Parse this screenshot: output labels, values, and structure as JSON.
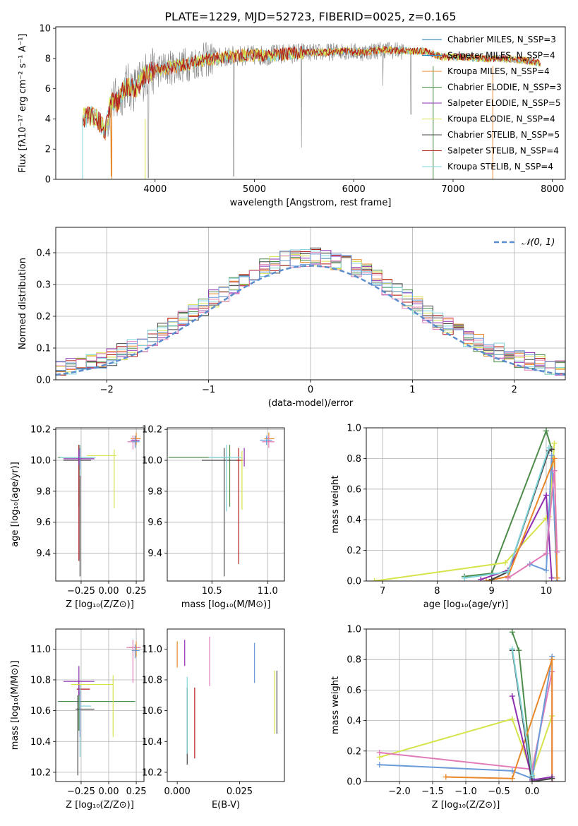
{
  "chart_data": [
    {
      "id": "spectrum",
      "type": "line",
      "title": "PLATE=1229, MJD=52723, FIBERID=0025, z=0.165",
      "xlabel": "wavelength [Angstrom, rest frame]",
      "ylabel": "Flux [fλ10⁻¹⁷ erg cm⁻² s⁻¹ A⁻¹]",
      "xlim": [
        3000,
        8130
      ],
      "ylim": [
        0,
        10.1
      ],
      "xticks": [
        4000,
        5000,
        6000,
        7000,
        8000
      ],
      "yticks": [
        0,
        2,
        4,
        6,
        8,
        10
      ],
      "grid": false,
      "legend_position": "upper-right",
      "continuum": {
        "x": [
          3270,
          3300,
          3350,
          3420,
          3500,
          3560,
          3620,
          3700,
          3800,
          3900,
          4000,
          4150,
          4300,
          4500,
          4700,
          4900,
          5100,
          5300,
          5500,
          5700,
          5900,
          6100,
          6300,
          6500,
          6700,
          6900,
          7100,
          7300,
          7500,
          7700,
          7880
        ],
        "y": [
          4.1,
          4.1,
          4.2,
          4.0,
          3.2,
          5.3,
          5.1,
          6.2,
          6.0,
          6.9,
          7.2,
          7.4,
          7.6,
          7.9,
          8.1,
          8.2,
          8.2,
          8.3,
          8.4,
          8.4,
          8.5,
          8.4,
          8.6,
          8.5,
          8.5,
          8.1,
          8.1,
          8.0,
          8.0,
          7.9,
          7.7
        ]
      },
      "series": [
        {
          "name": "Chabrier MILES, N_SSP=3",
          "color": "#1f77b4"
        },
        {
          "name": "Salpeter MILES, N_SSP=4",
          "color": "#2c8cbf"
        },
        {
          "name": "Kroupa MILES, N_SSP=4",
          "color": "#e8882a"
        },
        {
          "name": "Chabrier ELODIE, N_SSP=3",
          "color": "#4c8c4a"
        },
        {
          "name": "Salpeter ELODIE, N_SSP=5",
          "color": "#8e2fb0"
        },
        {
          "name": "Kroupa ELODIE, N_SSP=4",
          "color": "#d6e34a"
        },
        {
          "name": "Chabrier STELIB, N_SSP=5",
          "color": "#444444"
        },
        {
          "name": "Salpeter STELIB, N_SSP=4",
          "color": "#b01c1c"
        },
        {
          "name": "Kroupa STELIB, N_SSP=4",
          "color": "#7fd3d8"
        }
      ]
    },
    {
      "id": "residuals",
      "type": "bar",
      "xlabel": "(data-model)/error",
      "ylabel": "Normed distribution",
      "xlim": [
        -2.5,
        2.5
      ],
      "ylim": [
        0,
        0.48
      ],
      "xticks": [
        -2,
        -1,
        0,
        1,
        2
      ],
      "yticks": [
        0.0,
        0.1,
        0.2,
        0.3,
        0.4
      ],
      "grid": true,
      "legend_position": "upper-right",
      "legend": "𝒩(0, 1)",
      "reference_curve": {
        "name": "N(0,1)",
        "mean": 0,
        "sigma": 1,
        "color": "#5b8ccc"
      },
      "bin_width": 0.1,
      "series_colors": [
        "#e8882a",
        "#4c8c4a",
        "#8e2fb0",
        "#d6e34a",
        "#444444",
        "#b01c1c",
        "#7fd3d8",
        "#e17ab8",
        "#6a9bd8"
      ]
    },
    {
      "id": "age-vs-Z",
      "type": "scatter",
      "xlabel": "Z [log₁₀(Z/Z⊙)]",
      "ylabel": "age  [log₁₀(age/yr)]",
      "xlim": [
        -0.48,
        0.32
      ],
      "ylim": [
        9.22,
        10.21
      ],
      "xticks": [
        -0.25,
        0.0,
        0.25
      ],
      "xticklabels": [
        "−0.25",
        "0.00",
        "0.25"
      ],
      "yticks": [
        9.4,
        9.6,
        9.8,
        10.0,
        10.2
      ],
      "yticklabels": [
        "9.4",
        "9.6",
        "9.8",
        "10.0",
        "10.2"
      ],
      "grid": true,
      "points": [
        {
          "x": -0.27,
          "xerr": [
            0.19,
            0.13
          ],
          "y": 10.02,
          "yerr": [
            0.32,
            0.08
          ],
          "color": "#4c8c4a"
        },
        {
          "x": -0.26,
          "xerr": [
            0.15,
            0.1
          ],
          "y": 10.0,
          "yerr": [
            0.75,
            0.08
          ],
          "color": "#444444"
        },
        {
          "x": -0.27,
          "xerr": [
            0.0,
            0.0
          ],
          "y": 10.0,
          "yerr": [
            0.65,
            0.1
          ],
          "color": "#b01c1c"
        },
        {
          "x": -0.26,
          "xerr": [
            0.18,
            0.14
          ],
          "y": 10.02,
          "yerr": [
            0.12,
            0.08
          ],
          "color": "#7fd3d8"
        },
        {
          "x": -0.26,
          "xerr": [
            0.0,
            0.0
          ],
          "y": 10.02,
          "yerr": [
            0.08,
            0.06
          ],
          "color": "#6a9bd8"
        },
        {
          "x": -0.27,
          "xerr": [
            0.14,
            0.14
          ],
          "y": 10.01,
          "yerr": [
            0.04,
            0.06
          ],
          "color": "#8e2fb0"
        },
        {
          "x": 0.05,
          "xerr": [
            0.25,
            0.02
          ],
          "y": 10.03,
          "yerr": [
            0.34,
            0.04
          ],
          "color": "#d6e34a"
        },
        {
          "x": 0.25,
          "xerr": [
            0.05,
            0.04
          ],
          "y": 10.14,
          "yerr": [
            0.04,
            0.04
          ],
          "color": "#e8882a"
        },
        {
          "x": 0.22,
          "xerr": [
            0.05,
            0.04
          ],
          "y": 10.12,
          "yerr": [
            0.05,
            0.04
          ],
          "color": "#e17ab8"
        },
        {
          "x": 0.24,
          "xerr": [
            0.04,
            0.04
          ],
          "y": 10.13,
          "yerr": [
            0.04,
            0.03
          ],
          "color": "#8e2fb0"
        },
        {
          "x": 0.24,
          "xerr": [
            0.03,
            0.04
          ],
          "y": 10.12,
          "yerr": [
            0.04,
            0.04
          ],
          "color": "#6a9bd8"
        }
      ]
    },
    {
      "id": "age-vs-mass",
      "type": "scatter",
      "xlabel": "mass [log₁₀(M/M⊙)]",
      "ylabel": "",
      "xlim": [
        10.1,
        11.15
      ],
      "ylim": [
        9.22,
        10.21
      ],
      "xticks": [
        10.5,
        11.0
      ],
      "xticklabels": [
        "10.5",
        "11.0"
      ],
      "yticks": [
        9.4,
        9.6,
        9.8,
        10.0,
        10.2
      ],
      "yticklabels": [
        "9.4",
        "9.6",
        "9.8",
        "10.0",
        "10.2"
      ],
      "grid": true,
      "points": [
        {
          "x": 10.66,
          "xerr": [
            0.55,
            0.0
          ],
          "y": 10.02,
          "yerr": [
            0.32,
            0.08
          ],
          "color": "#4c8c4a"
        },
        {
          "x": 10.61,
          "xerr": [
            0.2,
            0.14
          ],
          "y": 10.0,
          "yerr": [
            0.75,
            0.08
          ],
          "color": "#444444"
        },
        {
          "x": 10.74,
          "xerr": [
            0.02,
            0.04
          ],
          "y": 10.0,
          "yerr": [
            0.67,
            0.08
          ],
          "color": "#b01c1c"
        },
        {
          "x": 10.63,
          "xerr": [
            0.16,
            0.14
          ],
          "y": 10.02,
          "yerr": [
            0.35,
            0.08
          ],
          "color": "#7fd3d8"
        },
        {
          "x": 10.77,
          "xerr": [
            0.0,
            0.0
          ],
          "y": 10.02,
          "yerr": [
            0.34,
            0.04
          ],
          "color": "#d6e34a"
        },
        {
          "x": 10.79,
          "xerr": [
            0.0,
            0.0
          ],
          "y": 10.02,
          "yerr": [
            0.06,
            0.06
          ],
          "color": "#8e2fb0"
        },
        {
          "x": 11.01,
          "xerr": [
            0.04,
            0.05
          ],
          "y": 10.14,
          "yerr": [
            0.03,
            0.04
          ],
          "color": "#e8882a"
        },
        {
          "x": 11.01,
          "xerr": [
            0.06,
            0.05
          ],
          "y": 10.12,
          "yerr": [
            0.04,
            0.04
          ],
          "color": "#e17ab8"
        },
        {
          "x": 10.99,
          "xerr": [
            0.06,
            0.05
          ],
          "y": 10.13,
          "yerr": [
            0.03,
            0.03
          ],
          "color": "#6a9bd8"
        }
      ]
    },
    {
      "id": "weight-vs-age",
      "type": "line",
      "xlabel": "age  [log₁₀(age/yr)]",
      "ylabel": "mass weight",
      "xlim": [
        6.7,
        10.35
      ],
      "ylim": [
        0.0,
        1.0
      ],
      "xticks": [
        7,
        8,
        9,
        10
      ],
      "xticklabels": [
        "7",
        "8",
        "9",
        "10"
      ],
      "yticks": [
        0.0,
        0.2,
        0.4,
        0.6,
        0.8,
        1.0
      ],
      "yticklabels": [
        "0.0",
        "0.2",
        "0.4",
        "0.6",
        "0.8",
        "1.0"
      ],
      "grid": true,
      "series": [
        {
          "color": "#4c8c4a",
          "x": [
            8.5,
            9.0,
            10.0,
            10.1
          ],
          "y": [
            0.03,
            0.05,
            0.98,
            0.86
          ]
        },
        {
          "color": "#d6e34a",
          "x": [
            6.85,
            9.25,
            10.0,
            10.05,
            10.15
          ],
          "y": [
            0.0,
            0.12,
            0.41,
            0.42,
            0.9
          ]
        },
        {
          "color": "#8e2fb0",
          "x": [
            8.8,
            9.3,
            10.0,
            10.1
          ],
          "y": [
            0.01,
            0.07,
            0.56,
            0.02
          ]
        },
        {
          "color": "#6a9bd8",
          "x": [
            9.7,
            10.0,
            10.1,
            10.2
          ],
          "y": [
            0.11,
            0.07,
            0.82,
            0.0
          ]
        },
        {
          "color": "#e8882a",
          "x": [
            8.9,
            9.3,
            10.15,
            10.2
          ],
          "y": [
            0.0,
            0.03,
            0.8,
            0.02
          ]
        },
        {
          "color": "#e17ab8",
          "x": [
            9.3,
            10.0,
            10.15,
            10.2
          ],
          "y": [
            0.02,
            0.18,
            0.72,
            0.19
          ]
        },
        {
          "color": "#444444",
          "x": [
            9.0,
            9.3,
            10.05,
            10.1
          ],
          "y": [
            0.01,
            0.06,
            0.85,
            0.86
          ]
        },
        {
          "color": "#7fd3d8",
          "x": [
            8.5,
            9.3,
            10.05
          ],
          "y": [
            0.02,
            0.06,
            0.87
          ]
        }
      ]
    },
    {
      "id": "mass-vs-Z",
      "type": "scatter",
      "xlabel": "Z [log₁₀(Z/Z⊙)]",
      "ylabel": "mass [log₁₀(M/M⊙)]",
      "xlim": [
        -0.48,
        0.32
      ],
      "ylim": [
        10.14,
        11.13
      ],
      "xticks": [
        -0.25,
        0.0,
        0.25
      ],
      "xticklabels": [
        "−0.25",
        "0.00",
        "0.25"
      ],
      "yticks": [
        10.2,
        10.4,
        10.6,
        10.8,
        11.0
      ],
      "yticklabels": [
        "10.2",
        "10.4",
        "10.6",
        "10.8",
        "11.0"
      ],
      "grid": true,
      "points": [
        {
          "x": -0.27,
          "xerr": [
            0.19,
            0.51
          ],
          "y": 10.66,
          "yerr": [
            0.19,
            0.06
          ],
          "color": "#4c8c4a"
        },
        {
          "x": -0.28,
          "xerr": [
            0.02,
            0.15
          ],
          "y": 10.61,
          "yerr": [
            0.43,
            0.09
          ],
          "color": "#444444"
        },
        {
          "x": -0.27,
          "xerr": [
            0.02,
            0.1
          ],
          "y": 10.74,
          "yerr": [
            0.04,
            0.05
          ],
          "color": "#b01c1c"
        },
        {
          "x": -0.26,
          "xerr": [
            0.0,
            0.1
          ],
          "y": 10.63,
          "yerr": [
            0.33,
            0.14
          ],
          "color": "#7fd3d8"
        },
        {
          "x": -0.26,
          "xerr": [
            0.0,
            0.0
          ],
          "y": 10.63,
          "yerr": [
            0.2,
            0.1
          ],
          "color": "#6a9bd8"
        },
        {
          "x": -0.27,
          "xerr": [
            0.14,
            0.14
          ],
          "y": 10.79,
          "yerr": [
            0.09,
            0.1
          ],
          "color": "#8e2fb0"
        },
        {
          "x": 0.04,
          "xerr": [
            0.38,
            0.0
          ],
          "y": 10.77,
          "yerr": [
            0.34,
            0.06
          ],
          "color": "#d6e34a"
        },
        {
          "x": 0.25,
          "xerr": [
            0.07,
            0.04
          ],
          "y": 11.01,
          "yerr": [
            0.06,
            0.04
          ],
          "color": "#e8882a"
        },
        {
          "x": 0.22,
          "xerr": [
            0.06,
            0.07
          ],
          "y": 11.01,
          "yerr": [
            0.23,
            0.05
          ],
          "color": "#e17ab8"
        },
        {
          "x": 0.24,
          "xerr": [
            0.03,
            0.04
          ],
          "y": 10.99,
          "yerr": [
            0.05,
            0.04
          ],
          "color": "#6a9bd8"
        }
      ]
    },
    {
      "id": "mass-vs-EBV",
      "type": "scatter",
      "xlabel": "E(B-V)",
      "ylabel": "",
      "xlim": [
        -0.004,
        0.043
      ],
      "ylim": [
        10.14,
        11.13
      ],
      "xticks": [
        0.0,
        0.025
      ],
      "xticklabels": [
        "0.000",
        "0.025"
      ],
      "yticks": [
        10.2,
        10.4,
        10.6,
        10.8,
        11.0
      ],
      "yticklabels": [
        "10.2",
        "10.4",
        "10.6",
        "10.8",
        "11.0"
      ],
      "grid": false,
      "points": [
        {
          "x": 0.0,
          "y": 10.97,
          "yerr": [
            0.09,
            0.08
          ],
          "color": "#e8882a"
        },
        {
          "x": 0.003,
          "y": 10.97,
          "yerr": [
            0.08,
            0.09
          ],
          "color": "#8e2fb0"
        },
        {
          "x": 0.004,
          "y": 10.55,
          "yerr": [
            0.3,
            0.2
          ],
          "color": "#444444"
        },
        {
          "x": 0.004,
          "y": 10.62,
          "yerr": [
            0.3,
            0.2
          ],
          "color": "#7fd3d8"
        },
        {
          "x": 0.007,
          "y": 10.62,
          "yerr": [
            0.33,
            0.13
          ],
          "color": "#b01c1c"
        },
        {
          "x": 0.013,
          "y": 10.92,
          "yerr": [
            0.16,
            0.16
          ],
          "color": "#e17ab8"
        },
        {
          "x": 0.031,
          "y": 10.91,
          "yerr": [
            0.13,
            0.13
          ],
          "color": "#6a9bd8"
        },
        {
          "x": 0.039,
          "y": 10.65,
          "yerr": [
            0.2,
            0.21
          ],
          "color": "#d6e34a"
        },
        {
          "x": 0.04,
          "y": 10.65,
          "yerr": [
            0.2,
            0.21
          ],
          "color": "#444444"
        }
      ]
    },
    {
      "id": "weight-vs-Z",
      "type": "line",
      "xlabel": "Z [log₁₀(Z/Z⊙)]",
      "ylabel": "mass weight",
      "xlim": [
        -2.5,
        0.5
      ],
      "ylim": [
        0.0,
        1.0
      ],
      "xticks": [
        -2.0,
        -1.5,
        -1.0,
        -0.5,
        0.0
      ],
      "xticklabels": [
        "−2.0",
        "−1.5",
        "−1.0",
        "−0.5",
        "0.0"
      ],
      "yticks": [
        0.0,
        0.2,
        0.4,
        0.6,
        0.8,
        1.0
      ],
      "yticklabels": [
        "0.0",
        "0.2",
        "0.4",
        "0.6",
        "0.8",
        "1.0"
      ],
      "grid": true,
      "series": [
        {
          "color": "#4c8c4a",
          "x": [
            -0.3,
            -0.2,
            0.0
          ],
          "y": [
            0.98,
            0.86,
            0.03
          ]
        },
        {
          "color": "#d6e34a",
          "x": [
            -2.3,
            -0.3,
            0.0,
            0.3
          ],
          "y": [
            0.16,
            0.41,
            0.05,
            0.43
          ]
        },
        {
          "color": "#e17ab8",
          "x": [
            -2.3,
            0.0,
            0.3,
            0.3
          ],
          "y": [
            0.19,
            0.08,
            0.72,
            0.0
          ]
        },
        {
          "color": "#6a9bd8",
          "x": [
            -2.3,
            -0.3,
            0.0,
            0.3
          ],
          "y": [
            0.11,
            0.07,
            0.02,
            0.82
          ]
        },
        {
          "color": "#e8882a",
          "x": [
            -1.3,
            -0.3,
            0.3,
            0.3
          ],
          "y": [
            0.03,
            0.02,
            0.8,
            0.02
          ]
        },
        {
          "color": "#8e2fb0",
          "x": [
            -0.3,
            0.0,
            0.3
          ],
          "y": [
            0.56,
            0.01,
            0.03
          ]
        },
        {
          "color": "#444444",
          "x": [
            -0.3,
            0.0,
            0.3
          ],
          "y": [
            0.86,
            0.0,
            0.02
          ]
        },
        {
          "color": "#7fd3d8",
          "x": [
            -0.3,
            0.0
          ],
          "y": [
            0.87,
            0.04
          ]
        }
      ]
    }
  ]
}
